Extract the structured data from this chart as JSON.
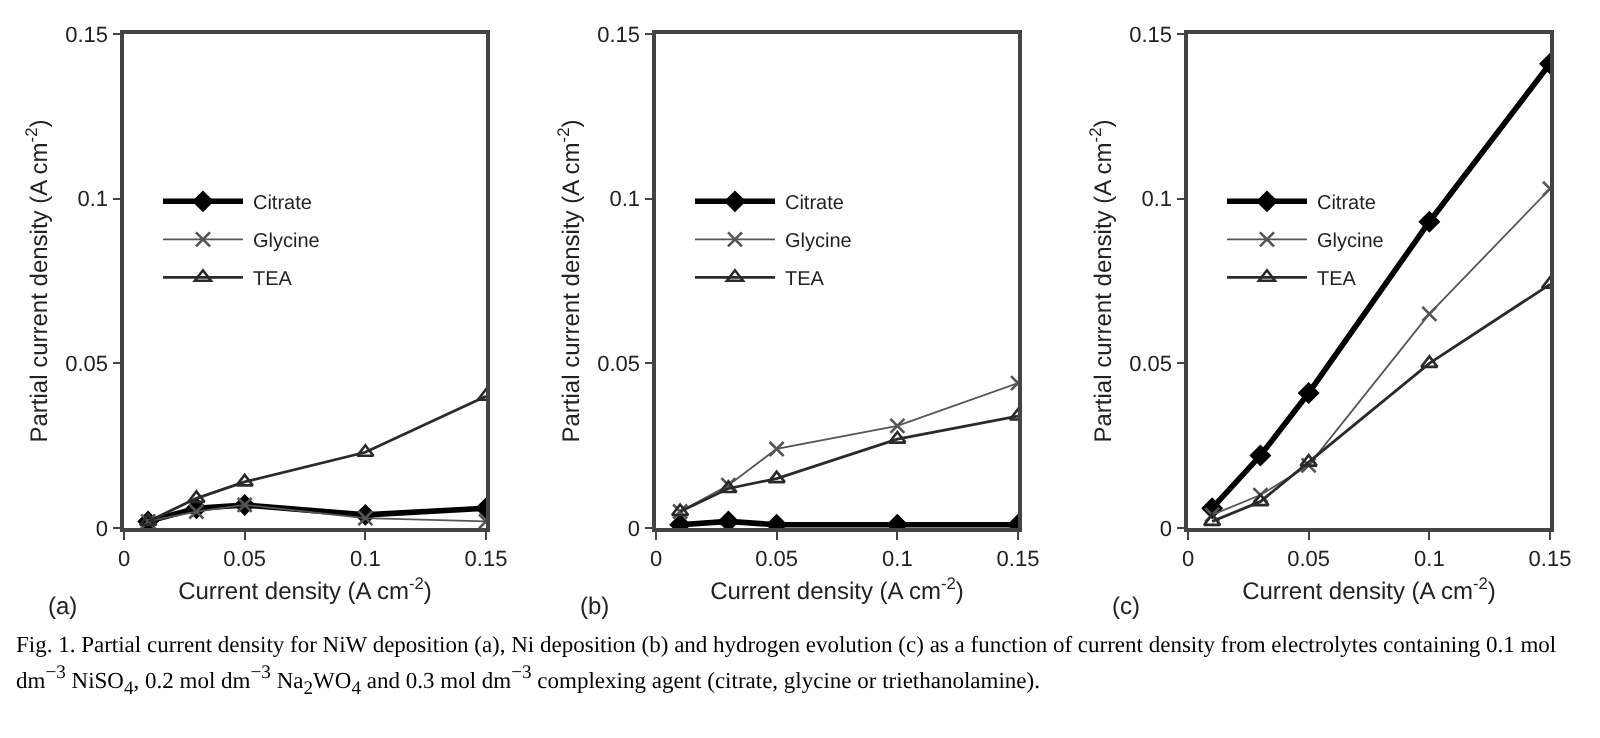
{
  "chart_data": [
    {
      "type": "line",
      "xlabel": "Current density (A cm$^{-2}$)",
      "ylabel": "Partial current density (A cm$^{-2}$)",
      "x": [
        0.01,
        0.03,
        0.05,
        0.1,
        0.15
      ],
      "xlim": [
        0,
        0.15
      ],
      "xticks": [
        0,
        0.05,
        0.1,
        0.15
      ],
      "ylim": [
        0,
        0.15
      ],
      "yticks": [
        0,
        0.05,
        0.1,
        0.15
      ],
      "grid": false,
      "legend": "left",
      "series": [
        {
          "name": "Citrate",
          "color": "#000000",
          "marker": "diamond",
          "values": [
            0.002,
            0.006,
            0.007,
            0.004,
            0.006
          ]
        },
        {
          "name": "Glycine",
          "color": "#555555",
          "marker": "cross",
          "values": [
            0.002,
            0.005,
            0.007,
            0.003,
            0.002
          ]
        },
        {
          "name": "TEA",
          "color": "#2a2a2a",
          "marker": "triangle",
          "values": [
            0.002,
            0.009,
            0.014,
            0.023,
            0.04
          ]
        }
      ],
      "annotations": [
        "(a)",
        "Fig. 1. Partial current density for NiW deposition (a), Ni deposition (b) and hydrogen evolution (c) as a function of current density from electrolytes containing 0.1 mol dm$^{−3}$ NiSO$_{4}$, 0.2 mol dm$^{−3}$ Na$_{2}$WO$_{4}$ and 0.3 mol dm$^{−3}$ complexing agent (citrate, glycine or triethanolamine)."
      ]
    },
    {
      "type": "line",
      "xlabel": "Current density (A cm$^{-2}$)",
      "ylabel": "Partial current density (A cm$^{-2}$)",
      "x": [
        0.01,
        0.03,
        0.05,
        0.1,
        0.15
      ],
      "xlim": [
        0,
        0.15
      ],
      "xticks": [
        0,
        0.05,
        0.1,
        0.15
      ],
      "ylim": [
        0,
        0.15
      ],
      "yticks": [
        0,
        0.05,
        0.1,
        0.15
      ],
      "grid": false,
      "legend": "left",
      "series": [
        {
          "name": "Citrate",
          "color": "#000000",
          "marker": "diamond",
          "values": [
            0.001,
            0.002,
            0.001,
            0.001,
            0.001
          ]
        },
        {
          "name": "Glycine",
          "color": "#555555",
          "marker": "cross",
          "values": [
            0.005,
            0.013,
            0.024,
            0.031,
            0.044
          ]
        },
        {
          "name": "TEA",
          "color": "#2a2a2a",
          "marker": "triangle",
          "values": [
            0.005,
            0.012,
            0.015,
            0.027,
            0.034
          ]
        }
      ],
      "annotations": [
        "(b)"
      ]
    },
    {
      "type": "line",
      "xlabel": "Current density (A cm$^{-2}$)",
      "ylabel": "Partial current density (A cm$^{-2}$)",
      "x": [
        0.01,
        0.03,
        0.05,
        0.1,
        0.15
      ],
      "xlim": [
        0,
        0.15
      ],
      "xticks": [
        0,
        0.05,
        0.1,
        0.15
      ],
      "ylim": [
        0,
        0.15
      ],
      "yticks": [
        0,
        0.05,
        0.1,
        0.15
      ],
      "grid": false,
      "legend": "left",
      "series": [
        {
          "name": "Citrate",
          "color": "#000000",
          "marker": "diamond",
          "values": [
            0.006,
            0.022,
            0.041,
            0.093,
            0.141
          ]
        },
        {
          "name": "Glycine",
          "color": "#555555",
          "marker": "cross",
          "values": [
            0.004,
            0.01,
            0.019,
            0.065,
            0.103
          ]
        },
        {
          "name": "TEA",
          "color": "#2a2a2a",
          "marker": "triangle",
          "values": [
            0.002,
            0.008,
            0.02,
            0.05,
            0.074
          ]
        }
      ],
      "annotations": [
        "(c)"
      ]
    }
  ]
}
